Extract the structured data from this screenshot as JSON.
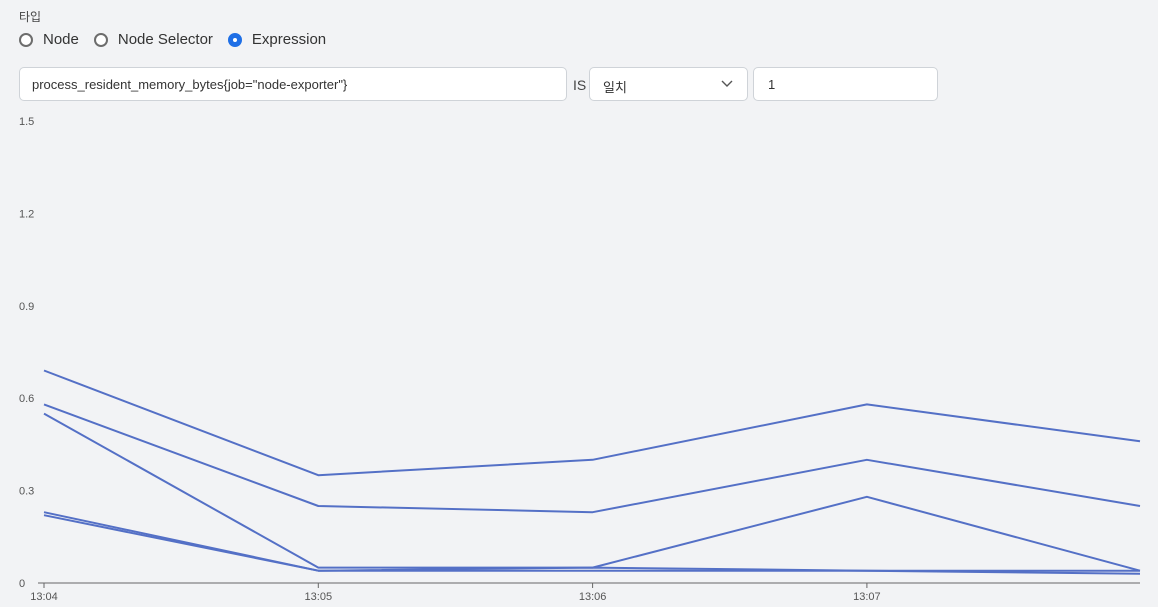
{
  "type_label": "타입",
  "radio_options": [
    {
      "label": "Node",
      "checked": false
    },
    {
      "label": "Node Selector",
      "checked": false
    },
    {
      "label": "Expression",
      "checked": true
    }
  ],
  "expression": {
    "value": "process_resident_memory_bytes{job=\"node-exporter\"}"
  },
  "is_label": "IS",
  "operator": {
    "selected": "일치"
  },
  "threshold": {
    "value": "1"
  },
  "colors": {
    "accent": "#1e6fe6",
    "series": "#5470c6"
  },
  "chart_data": {
    "type": "line",
    "x": [
      "13:04:00",
      "13:05:00",
      "13:06:00",
      "13:07:00",
      "13:08:00"
    ],
    "x_tick_labels": [
      "13:04",
      "13:05",
      "13:06",
      "13:07"
    ],
    "y_tick_labels": [
      "0",
      "0.3",
      "0.6",
      "0.9",
      "1.2",
      "1.5"
    ],
    "ylim": [
      0,
      1.5
    ],
    "grid": false,
    "series": [
      {
        "values": [
          0.69,
          0.35,
          0.4,
          0.58,
          0.46
        ]
      },
      {
        "values": [
          0.58,
          0.25,
          0.23,
          0.4,
          0.25
        ]
      },
      {
        "values": [
          0.55,
          0.05,
          0.05,
          0.28,
          0.04
        ]
      },
      {
        "values": [
          0.23,
          0.04,
          0.05,
          0.04,
          0.04
        ]
      },
      {
        "values": [
          0.22,
          0.04,
          0.04,
          0.04,
          0.03
        ]
      }
    ]
  }
}
